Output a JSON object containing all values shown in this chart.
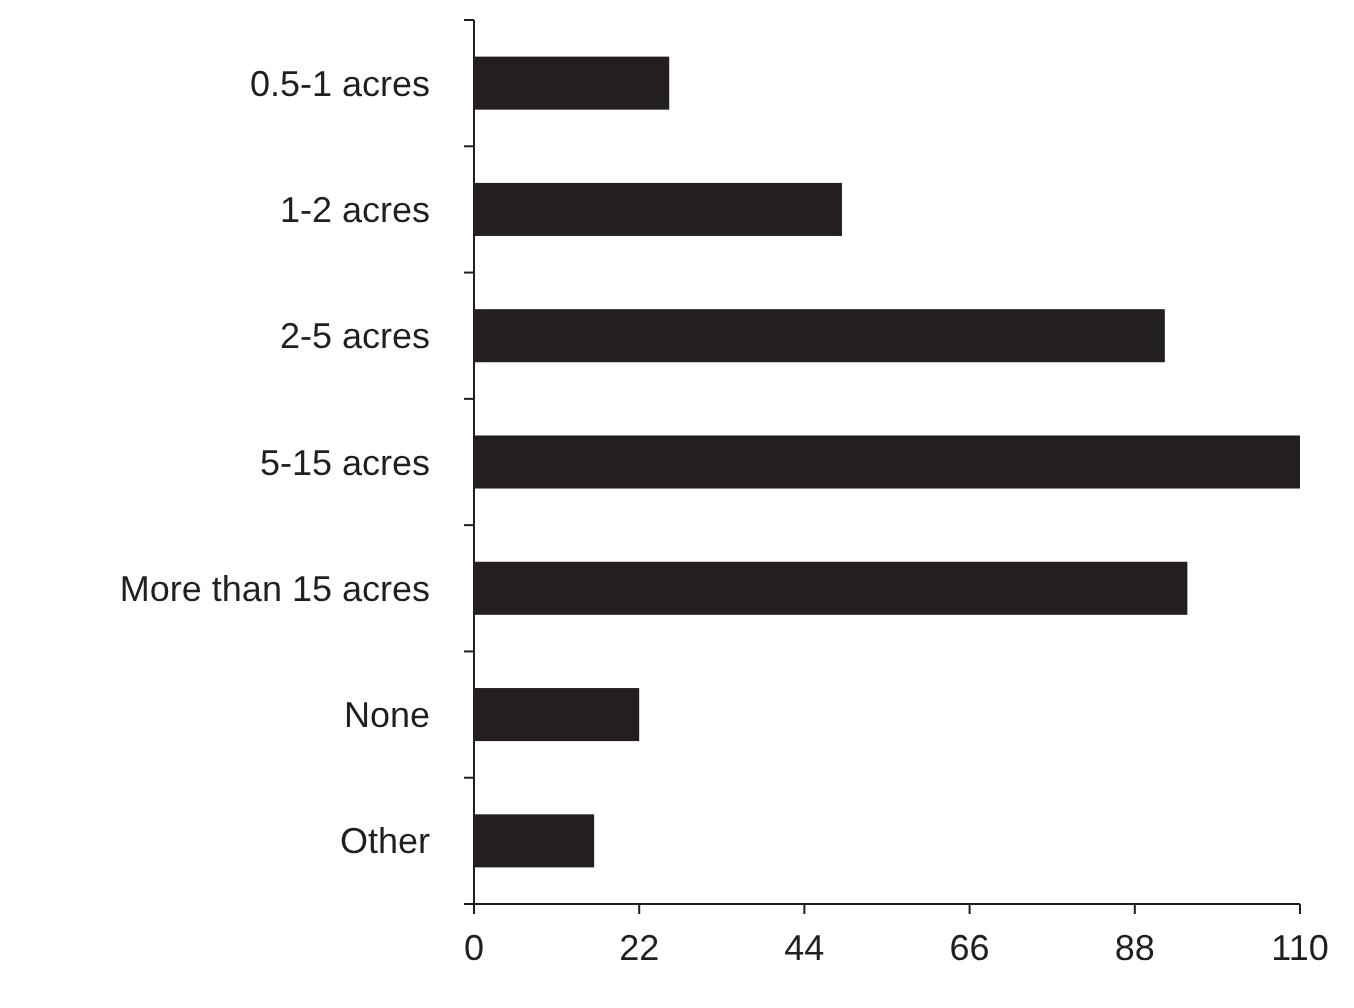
{
  "chart_data": {
    "type": "bar",
    "orientation": "horizontal",
    "categories": [
      "0.5-1 acres",
      "1-2 acres",
      "2-5 acres",
      "5-15 acres",
      "More than 15 acres",
      "None",
      "Other"
    ],
    "values": [
      26,
      49,
      92,
      110,
      95,
      22,
      16
    ],
    "color": "#231f20",
    "xlim": [
      0,
      110
    ],
    "xticks": [
      0,
      22,
      44,
      66,
      88,
      110
    ],
    "grid": false
  }
}
